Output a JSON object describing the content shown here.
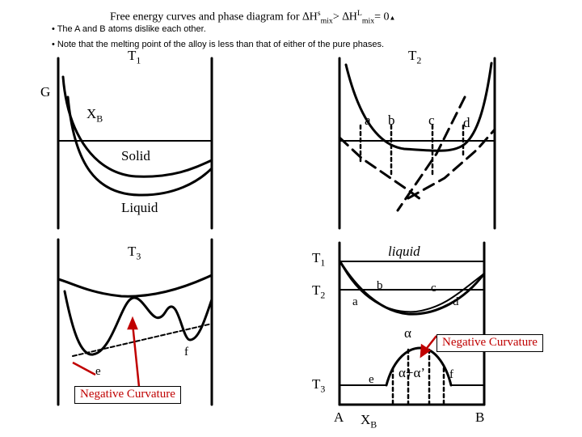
{
  "title": {
    "prefix": "Free energy curves and phase diagram for ",
    "delta1": "∆H",
    "sup1": "s",
    "sub1": "mix",
    "gt": "> ",
    "delta2": "∆H",
    "sup2": "L",
    "sub2": "mix",
    "eq": "= 0",
    "dot": "▲"
  },
  "bullets": [
    "• The A and B atoms dislike each other.",
    "• Note that the melting point of the alloy is less than that of either of the pure phases."
  ],
  "labels": {
    "T": "T",
    "sub1": "1",
    "sub2": "2",
    "sub3": "3",
    "G": "G",
    "X": "X",
    "subB": "B",
    "solid": "Solid",
    "liquid_panel": "Liquid",
    "a": "a",
    "b": "b",
    "c": "c",
    "d": "d",
    "e": "e",
    "f": "f",
    "liquid_phase": "liquid",
    "alpha": "α",
    "alpha_alpha": "α+α",
    "prime": "’",
    "A": "A",
    "B": "B",
    "neg_curv_left": "Negative Curvature",
    "neg_curv_right": "Negative Curvature"
  },
  "colors": {
    "accent": "#c00000",
    "line": "#000000",
    "background": "#ffffff"
  }
}
